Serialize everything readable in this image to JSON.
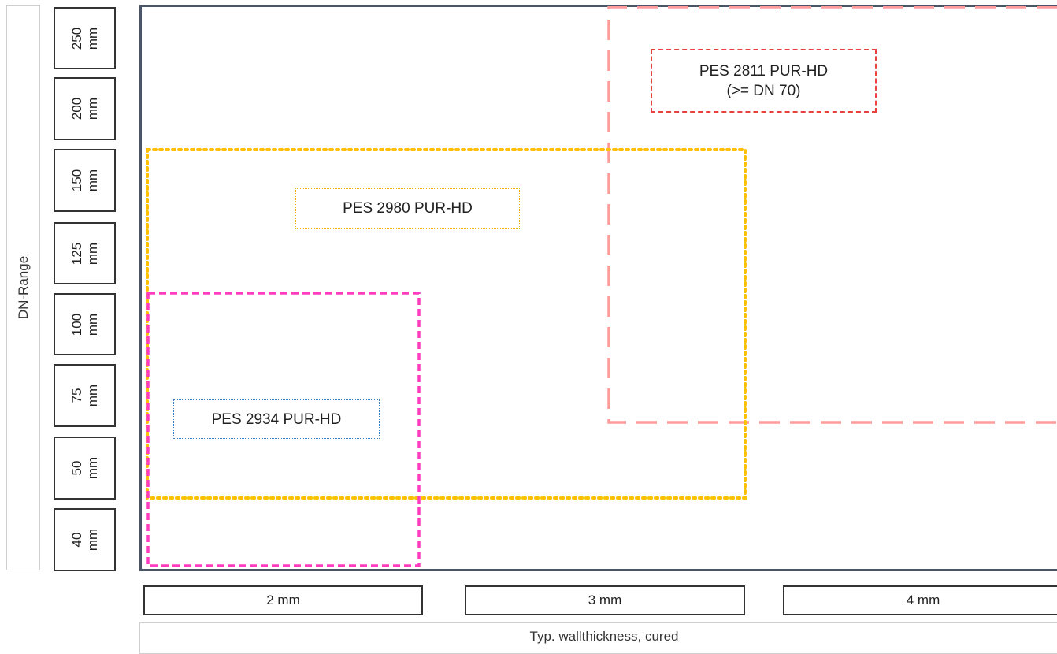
{
  "y_axis": {
    "title": "DN-Range",
    "categories": [
      {
        "value": "250",
        "unit": "mm"
      },
      {
        "value": "200",
        "unit": "mm"
      },
      {
        "value": "150",
        "unit": "mm"
      },
      {
        "value": "125",
        "unit": "mm"
      },
      {
        "value": "100",
        "unit": "mm"
      },
      {
        "value": "75",
        "unit": "mm"
      },
      {
        "value": "50",
        "unit": "mm"
      },
      {
        "value": "40",
        "unit": "mm"
      }
    ]
  },
  "x_axis": {
    "title": "Typ. wallthickness, cured",
    "categories": [
      "2 mm",
      "3 mm",
      "4 mm"
    ]
  },
  "products": [
    {
      "id": "pes2811",
      "name": "PES 2811 PUR-HD",
      "note": "(>= DN 70)",
      "color": "#ff9c9c",
      "label_border": "#e8423f",
      "line_style": "long-dash"
    },
    {
      "id": "pes2980",
      "name": "PES 2980 PUR-HD",
      "note": "",
      "color": "#ffc000",
      "label_border": "#f0b400",
      "line_style": "dotted"
    },
    {
      "id": "pes2934",
      "name": "PES 2934 PUR-HD",
      "note": "",
      "color": "#ff3bbf",
      "label_border": "#3b82c4",
      "line_style": "dashed"
    }
  ]
}
